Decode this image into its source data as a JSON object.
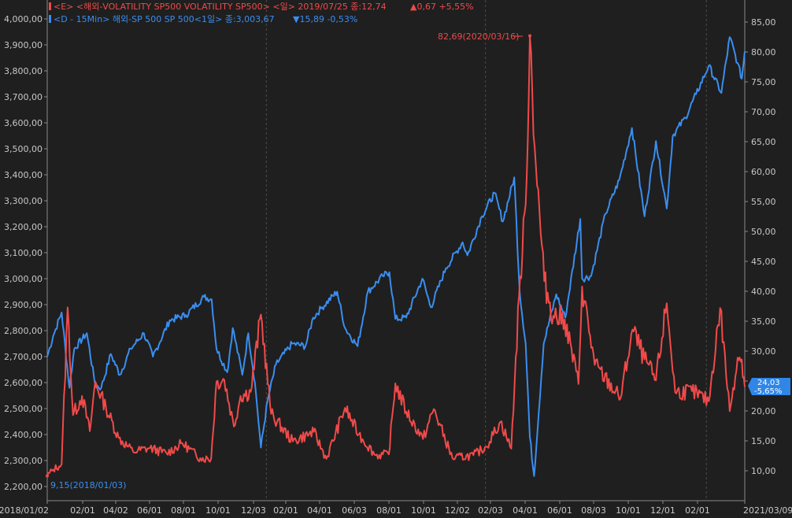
{
  "legend": {
    "vix": {
      "marker": "E",
      "text": "<E> <해외-VOLATILITY SP500 VOLATILITY SP500> <일> 2019/07/25 종:12,74",
      "change": "▲0,67 +5,55%"
    },
    "spx": {
      "marker": "D",
      "text": "<D - 15Min> 해외-SP 500 SP 500<1일> 종:3,003,67",
      "change": "▼15,89 -0,53%"
    }
  },
  "annotations": {
    "vix_peak": "82,69(2020/03/16)",
    "vix_low": "9,15(2018/01/03)"
  },
  "current_badge": {
    "value": "24,03",
    "change": "-5,65%"
  },
  "colors": {
    "background": "#1f1f1f",
    "vix": "#f04a4a",
    "spx": "#3a8ef0",
    "badge": "#2f86e6",
    "grid": "#4a4a4a",
    "text": "#c8c8c8"
  },
  "chart_data": {
    "type": "line",
    "title": "",
    "x_ticks": [
      "2018/01/02",
      "02/01",
      "04/02",
      "06/01",
      "08/01",
      "10/01",
      "12/03",
      "02/01",
      "04/01",
      "06/03",
      "08/01",
      "10/01",
      "12/02",
      "02/03",
      "04/01",
      "06/01",
      "08/03",
      "10/01",
      "12/01",
      "02/01",
      "2021/03/09"
    ],
    "left_axis": {
      "series": "SP 500",
      "ticks": [
        "2,200,00",
        "2,300,00",
        "2,400,00",
        "2,500,00",
        "2,600,00",
        "2,700,00",
        "2,800,00",
        "2,900,00",
        "3,000,00",
        "3,100,00",
        "3,200,00",
        "3,300,00",
        "3,400,00",
        "3,500,00",
        "3,600,00",
        "3,700,00",
        "3,800,00",
        "3,900,00",
        "4,000,00"
      ],
      "range": [
        2200,
        4000
      ]
    },
    "right_axis": {
      "series": "VOLATILITY SP500",
      "ticks": [
        "10,00",
        "15,00",
        "20,00",
        "25,00",
        "30,00",
        "35,00",
        "40,00",
        "45,00",
        "50,00",
        "55,00",
        "60,00",
        "65,00",
        "70,00",
        "75,00",
        "80,00",
        "85,00"
      ],
      "range": [
        10,
        85
      ]
    },
    "grid": "vertical dashed",
    "series": [
      {
        "name": "SP 500",
        "axis": "left",
        "points": [
          [
            "2018-01-02",
            2700
          ],
          [
            "2018-01-12",
            2780
          ],
          [
            "2018-01-26",
            2870
          ],
          [
            "2018-02-08",
            2580
          ],
          [
            "2018-02-16",
            2730
          ],
          [
            "2018-03-09",
            2790
          ],
          [
            "2018-03-23",
            2590
          ],
          [
            "2018-04-02",
            2580
          ],
          [
            "2018-04-18",
            2710
          ],
          [
            "2018-05-03",
            2630
          ],
          [
            "2018-05-21",
            2730
          ],
          [
            "2018-06-12",
            2790
          ],
          [
            "2018-06-27",
            2700
          ],
          [
            "2018-07-25",
            2840
          ],
          [
            "2018-08-21",
            2860
          ],
          [
            "2018-09-20",
            2930
          ],
          [
            "2018-10-03",
            2920
          ],
          [
            "2018-10-11",
            2730
          ],
          [
            "2018-10-29",
            2640
          ],
          [
            "2018-11-07",
            2810
          ],
          [
            "2018-11-23",
            2630
          ],
          [
            "2018-12-03",
            2790
          ],
          [
            "2018-12-14",
            2600
          ],
          [
            "2018-12-24",
            2350
          ],
          [
            "2019-01-04",
            2530
          ],
          [
            "2019-01-18",
            2670
          ],
          [
            "2019-02-14",
            2750
          ],
          [
            "2019-03-08",
            2740
          ],
          [
            "2019-03-21",
            2850
          ],
          [
            "2019-04-05",
            2890
          ],
          [
            "2019-04-30",
            2950
          ],
          [
            "2019-05-13",
            2810
          ],
          [
            "2019-06-03",
            2740
          ],
          [
            "2019-06-20",
            2950
          ],
          [
            "2019-07-15",
            3010
          ],
          [
            "2019-07-26",
            3025
          ],
          [
            "2019-08-05",
            2845
          ],
          [
            "2019-08-23",
            2850
          ],
          [
            "2019-09-19",
            3000
          ],
          [
            "2019-10-03",
            2890
          ],
          [
            "2019-10-28",
            3040
          ],
          [
            "2019-11-25",
            3140
          ],
          [
            "2019-12-03",
            3090
          ],
          [
            "2019-12-27",
            3240
          ],
          [
            "2020-01-17",
            3330
          ],
          [
            "2020-01-31",
            3220
          ],
          [
            "2020-02-19",
            3390
          ],
          [
            "2020-02-28",
            2950
          ],
          [
            "2020-03-09",
            2750
          ],
          [
            "2020-03-16",
            2390
          ],
          [
            "2020-03-23",
            2240
          ],
          [
            "2020-04-08",
            2750
          ],
          [
            "2020-04-29",
            2940
          ],
          [
            "2020-05-14",
            2850
          ],
          [
            "2020-06-08",
            3230
          ],
          [
            "2020-06-11",
            3000
          ],
          [
            "2020-06-26",
            3010
          ],
          [
            "2020-07-20",
            3250
          ],
          [
            "2020-08-12",
            3380
          ],
          [
            "2020-09-02",
            3580
          ],
          [
            "2020-09-23",
            3240
          ],
          [
            "2020-10-12",
            3530
          ],
          [
            "2020-10-30",
            3270
          ],
          [
            "2020-11-09",
            3550
          ],
          [
            "2020-11-30",
            3620
          ],
          [
            "2020-12-18",
            3710
          ],
          [
            "2021-01-08",
            3820
          ],
          [
            "2021-01-29",
            3715
          ],
          [
            "2021-02-12",
            3930
          ],
          [
            "2021-02-25",
            3830
          ],
          [
            "2021-03-04",
            3770
          ],
          [
            "2021-03-09",
            3875
          ]
        ]
      },
      {
        "name": "VOLATILITY SP500",
        "axis": "right",
        "points": [
          [
            "2018-01-02",
            9.15
          ],
          [
            "2018-01-12",
            10.2
          ],
          [
            "2018-01-26",
            11.1
          ],
          [
            "2018-02-05",
            37.3
          ],
          [
            "2018-02-14",
            19.3
          ],
          [
            "2018-03-01",
            22.5
          ],
          [
            "2018-03-14",
            16.6
          ],
          [
            "2018-03-23",
            24.9
          ],
          [
            "2018-04-10",
            20.5
          ],
          [
            "2018-05-01",
            15.5
          ],
          [
            "2018-05-25",
            13.2
          ],
          [
            "2018-06-22",
            13.8
          ],
          [
            "2018-07-20",
            12.9
          ],
          [
            "2018-08-15",
            14.6
          ],
          [
            "2018-09-14",
            12.1
          ],
          [
            "2018-10-02",
            12.0
          ],
          [
            "2018-10-11",
            24.9
          ],
          [
            "2018-10-24",
            25.2
          ],
          [
            "2018-11-09",
            17.4
          ],
          [
            "2018-11-20",
            22.5
          ],
          [
            "2018-12-07",
            23.2
          ],
          [
            "2018-12-24",
            36.1
          ],
          [
            "2019-01-10",
            19.5
          ],
          [
            "2019-02-15",
            14.9
          ],
          [
            "2019-03-22",
            16.5
          ],
          [
            "2019-04-12",
            12.0
          ],
          [
            "2019-05-13",
            20.5
          ],
          [
            "2019-06-05",
            16.1
          ],
          [
            "2019-07-03",
            12.6
          ],
          [
            "2019-07-25",
            12.74
          ],
          [
            "2019-08-05",
            24.6
          ],
          [
            "2019-08-23",
            19.9
          ],
          [
            "2019-09-20",
            15.3
          ],
          [
            "2019-10-08",
            20.3
          ],
          [
            "2019-11-08",
            12.1
          ],
          [
            "2019-12-13",
            12.6
          ],
          [
            "2020-01-03",
            14.0
          ],
          [
            "2020-01-27",
            18.2
          ],
          [
            "2020-02-14",
            13.7
          ],
          [
            "2020-02-27",
            39.2
          ],
          [
            "2020-03-09",
            54.5
          ],
          [
            "2020-03-16",
            82.69
          ],
          [
            "2020-03-26",
            61.0
          ],
          [
            "2020-04-09",
            41.7
          ],
          [
            "2020-04-24",
            35.9
          ],
          [
            "2020-05-13",
            35.3
          ],
          [
            "2020-06-05",
            24.5
          ],
          [
            "2020-06-11",
            40.8
          ],
          [
            "2020-07-02",
            27.7
          ],
          [
            "2020-08-14",
            22.1
          ],
          [
            "2020-09-03",
            33.6
          ],
          [
            "2020-09-23",
            28.6
          ],
          [
            "2020-10-12",
            25.1
          ],
          [
            "2020-10-30",
            38.0
          ],
          [
            "2020-11-13",
            23.1
          ],
          [
            "2020-12-11",
            23.3
          ],
          [
            "2021-01-08",
            21.6
          ],
          [
            "2021-01-27",
            37.2
          ],
          [
            "2021-02-12",
            19.97
          ],
          [
            "2021-02-25",
            28.9
          ],
          [
            "2021-03-04",
            28.6
          ],
          [
            "2021-03-09",
            24.03
          ]
        ]
      }
    ]
  }
}
